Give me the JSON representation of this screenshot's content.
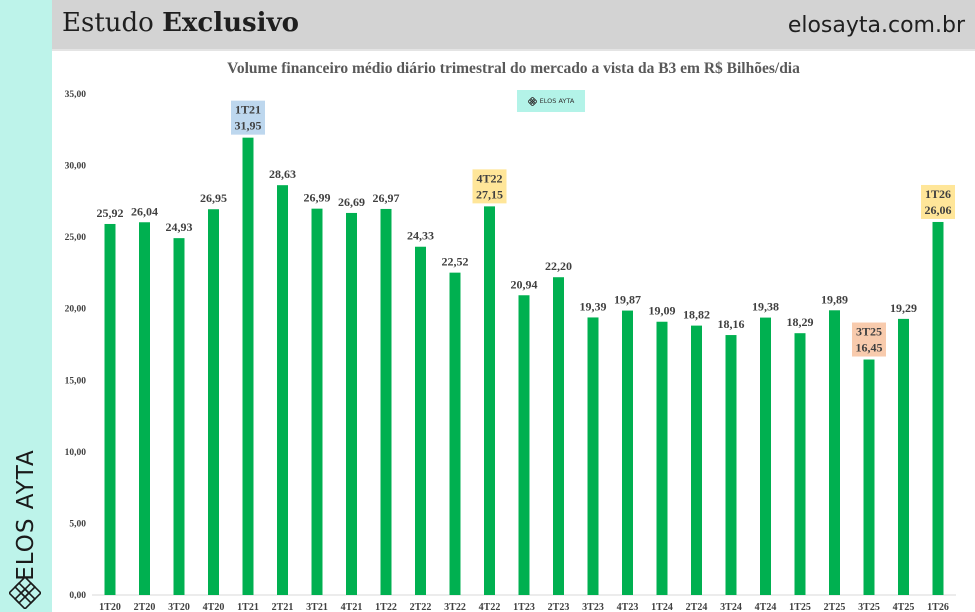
{
  "header": {
    "title_regular": "Estudo",
    "title_bold": "Exclusivo",
    "site": "elosayta.com.br"
  },
  "sidebar": {
    "brand": "ELOS AYTA",
    "logo_icon": "elos-ayta-knot-icon"
  },
  "watermark": {
    "brand": "ELOS AYTA",
    "logo_icon": "elos-ayta-knot-icon"
  },
  "colors": {
    "bar": "#00b050",
    "sidebar": "#bdf3ea",
    "header": "#d3d3d3",
    "highlight_blue": "#bdd7ee",
    "highlight_yellow": "#ffe699",
    "highlight_orange": "#f8cbad"
  },
  "chart_data": {
    "type": "bar",
    "title": "Volume financeiro médio diário trimestral do mercado a vista da B3 em R$ Bilhões/dia",
    "xlabel": "",
    "ylabel": "",
    "ylim": [
      0,
      35
    ],
    "grid": false,
    "yticks": [
      "0,00",
      "5,00",
      "10,00",
      "15,00",
      "20,00",
      "25,00",
      "30,00",
      "35,00"
    ],
    "ytick_values": [
      0,
      5,
      10,
      15,
      20,
      25,
      30,
      35
    ],
    "categories": [
      "1T20",
      "2T20",
      "3T20",
      "4T20",
      "1T21",
      "2T21",
      "3T21",
      "4T21",
      "1T22",
      "2T22",
      "3T22",
      "4T22",
      "1T23",
      "2T23",
      "3T23",
      "4T23",
      "1T24",
      "2T24",
      "3T24",
      "4T24",
      "1T25",
      "2T25",
      "3T25",
      "4T25",
      "1T26"
    ],
    "values": [
      25.92,
      26.04,
      24.93,
      26.95,
      31.95,
      28.63,
      26.99,
      26.69,
      26.97,
      24.33,
      22.52,
      27.15,
      20.94,
      22.2,
      19.39,
      19.87,
      19.09,
      18.82,
      18.16,
      19.38,
      18.29,
      19.89,
      16.45,
      19.29,
      26.06
    ],
    "value_labels": [
      "25,92",
      "26,04",
      "24,93",
      "26,95",
      "31,95",
      "28,63",
      "26,99",
      "26,69",
      "26,97",
      "24,33",
      "22,52",
      "27,15",
      "20,94",
      "22,20",
      "19,39",
      "19,87",
      "19,09",
      "18,82",
      "18,16",
      "19,38",
      "18,29",
      "19,89",
      "16,45",
      "19,29",
      "26,06"
    ],
    "highlights": [
      {
        "category": "1T21",
        "color": "#bdd7ee"
      },
      {
        "category": "4T22",
        "color": "#ffe699"
      },
      {
        "category": "3T25",
        "color": "#f8cbad"
      },
      {
        "category": "1T26",
        "color": "#ffe699"
      }
    ]
  }
}
